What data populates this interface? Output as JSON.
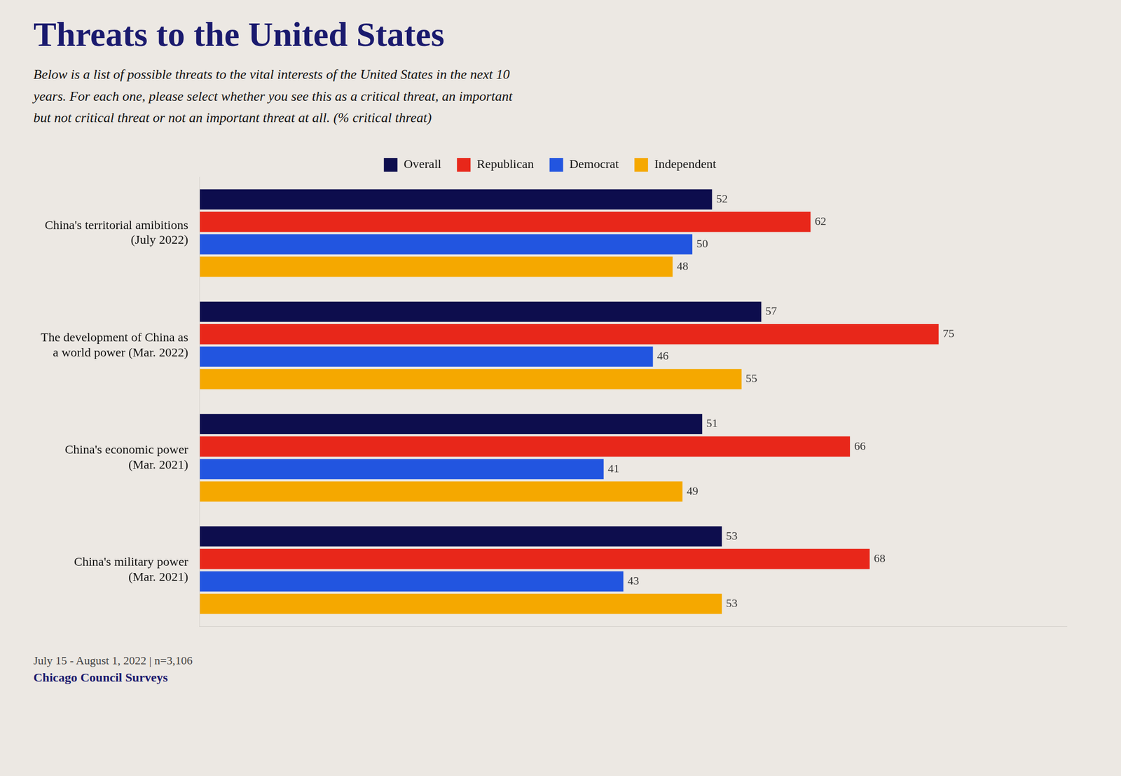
{
  "chart_data": {
    "type": "bar",
    "orientation": "horizontal",
    "title": "Threats to the United States",
    "subtitle": "Below is a list of possible threats to the vital interests of the United States in the next 10\nyears. For each one, please select whether you see this as a critical threat, an important\nbut not critical threat or not an important threat at all. (% critical threat)",
    "footnote": "July 15 - August 1, 2022 | n=3,106",
    "source": "Chicago Council Surveys",
    "categories": [
      "China's territorial amibitions\n(July 2022)",
      "The development of China as\na world power (Mar. 2022)",
      "China's economic power\n(Mar. 2021)",
      "China's military power\n(Mar. 2021)"
    ],
    "series": [
      {
        "name": "Overall",
        "color": "#0d0d4d",
        "values": [
          52,
          57,
          51,
          53
        ]
      },
      {
        "name": "Republican",
        "color": "#e8271a",
        "values": [
          62,
          75,
          66,
          68
        ]
      },
      {
        "name": "Democrat",
        "color": "#2255e0",
        "values": [
          50,
          46,
          41,
          43
        ]
      },
      {
        "name": "Independent",
        "color": "#f5a800",
        "values": [
          48,
          55,
          49,
          53
        ]
      }
    ],
    "xlim": [
      0,
      88
    ],
    "grid": false,
    "legend": "top",
    "data_labels": true,
    "tick_labels": "y"
  }
}
